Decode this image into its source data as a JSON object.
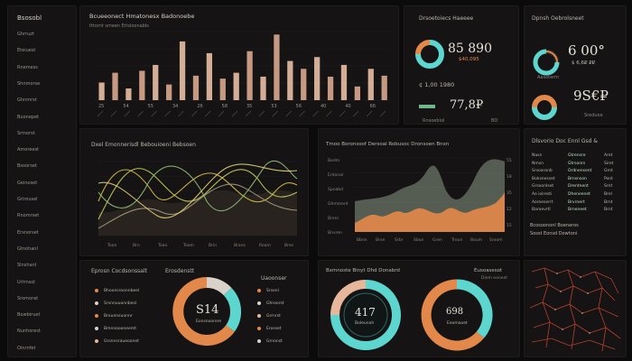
{
  "sidebar": {
    "title": "Bsosobl",
    "items": [
      "Ghrruzt",
      "Eteiuest",
      "Rnemess",
      "Shnmorse",
      "Ghnmrst",
      "Buonepet",
      "Srmorst",
      "Amoreest",
      "Bsoorset",
      "Geinoset",
      "Grirousel",
      "Rnomrset",
      "Ersnorset",
      "Gtnohanl",
      "Slnshanl",
      "Urtrnsst",
      "Sromorat",
      "Bowbiruet",
      "Nunhorest",
      "Oinrnfet"
    ]
  },
  "bar_panel": {
    "title": "Bcueeonect Hmatonesx Badonoebe",
    "subtitle": "tttomt smeen Erlsloonabls",
    "x_labels": [
      "25",
      "54",
      "55",
      "34",
      "26",
      "58",
      "35",
      "53",
      "56",
      "40",
      "40",
      "66"
    ]
  },
  "bar_chart_data": {
    "type": "bar",
    "values": [
      18,
      28,
      12,
      30,
      36,
      16,
      60,
      25,
      48,
      22,
      28,
      50,
      24,
      67,
      40,
      32,
      44,
      24,
      36,
      14,
      32,
      25
    ]
  },
  "kpi_panel_1": {
    "title": "Drsoetoiecs Haeeee",
    "value_main": "85 890",
    "value_side": "$40,095",
    "row_a": "¢ 1,00  1980",
    "value_lower": "77,8₽",
    "row_b": "Rnsoebiol",
    "row_c": "BO"
  },
  "kpi_panel_2": {
    "title": "Dpnsh Oebrolsneet",
    "value_main": "6 00°",
    "value_sub": "$ 6,6₽ ₽₽",
    "value_lower": "9S€₽",
    "row_a": "Aasoterm",
    "row_b": "Sreduoe"
  },
  "line_panel": {
    "title": "Dxel Emonnerisdl Bebouioeni Bebsoen",
    "x_labels": [
      "Toon",
      "Brn",
      "Toan",
      "Toom",
      "Brin",
      "Brans",
      "Roam",
      "Bres"
    ]
  },
  "area_panel": {
    "title": "Tmoo Boronsoof Dersoal Robusoc Dronsoen Bnxn",
    "y_labels": [
      "Bedm",
      "Erdonal",
      "Spoabd",
      "Ghmmerd",
      "Brenr",
      "Bnvren"
    ],
    "x_labels": [
      "Bbnn",
      "Bron",
      "Srbr",
      "Sbon",
      "Gren",
      "Troun",
      "Boum",
      "Sroom"
    ],
    "y_right": [
      "55",
      "18",
      "35",
      "12",
      "15"
    ]
  },
  "table_panel": {
    "title": "Dlsvorio Doc Ennl Gsd &",
    "rows": [
      {
        "label": "Nasn",
        "a": "Gtrensre",
        "b": "Aret"
      },
      {
        "label": "Nmsn",
        "a": "Gtrsonrs",
        "b": "Siret"
      },
      {
        "label": "Srsoaronb",
        "a": "Ordnensent",
        "b": "Grnt"
      },
      {
        "label": "Boksnesset",
        "a": "Brnsnson",
        "b": "Pont"
      },
      {
        "label": "Grsoonlset",
        "a": "Drentnent",
        "b": "Srnt"
      },
      {
        "label": "Ao ioiresti",
        "a": "Dheneenet",
        "b": "Brel"
      },
      {
        "label": "Aoroeserrt",
        "a": "Brvrnert",
        "b": "Brnt"
      },
      {
        "label": "Baroevrtl",
        "a": "Brneneet",
        "b": "Brnt"
      }
    ],
    "footer_1": "Bcosoononl Boeneros",
    "footer_2": "Sosst Eonsd Dowtoni"
  },
  "donut_panel_1": {
    "title": "Eprosn Cocdsonssalt",
    "legend_title": "Erosdenstt",
    "legend_title_2": "Uaoonser",
    "legend": [
      "Bhoonsroonnbeel",
      "Srsnnuuonnbesl",
      "Brounnsuonnr",
      "Bmnnoooneemt",
      "Grsnnsraueoonet"
    ],
    "legend_right": [
      "Srsonl",
      "Ghroorst",
      "Grrnrst",
      "Erosset",
      "Grnonst"
    ],
    "value": "S14",
    "value_label": "Eonsnoorere"
  },
  "donut_panel_2": {
    "title": "Bxmnoste Binyt Dhd Donabrd",
    "title_2": "Eusoasesot",
    "subtitle": "Diem eoneet",
    "value_1": "417",
    "value_1_label": "Boleunoh",
    "value_2": "698",
    "value_2_label": "Eeomaoet"
  },
  "colors": {
    "orange": "#e2884a",
    "teal": "#5dd6cf",
    "peach": "#e7b79c",
    "yellow": "#d9c04a",
    "green": "#7fb07c",
    "red_line": "#b5402e"
  }
}
